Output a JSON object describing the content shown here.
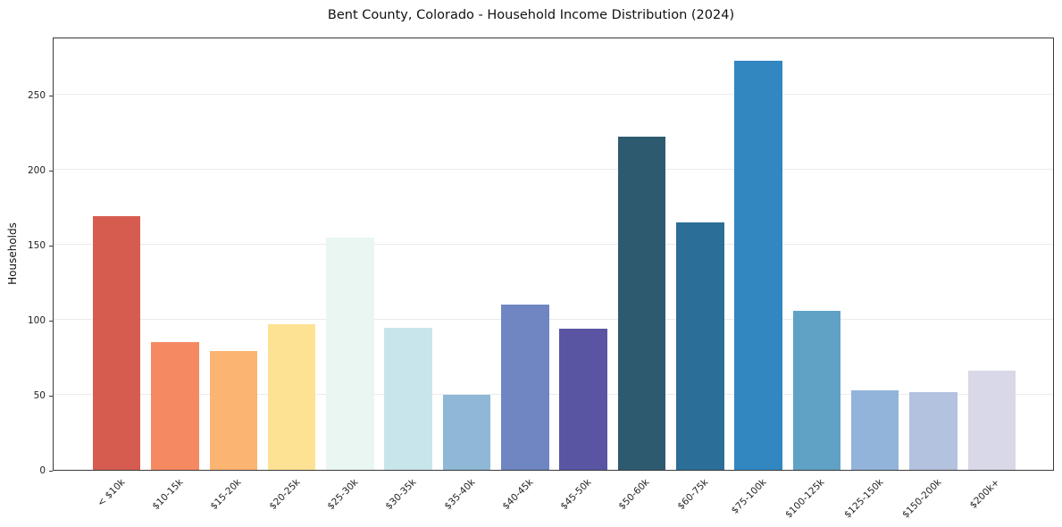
{
  "chart_data": {
    "type": "bar",
    "title": "Bent County, Colorado - Household Income Distribution (2024)",
    "xlabel": "",
    "ylabel": "Households",
    "categories": [
      "< $10k",
      "$10-15k",
      "$15-20k",
      "$20-25k",
      "$25-30k",
      "$30-35k",
      "$35-40k",
      "$40-45k",
      "$45-50k",
      "$50-60k",
      "$60-75k",
      "$75-100k",
      "$100-125k",
      "$125-150k",
      "$150-200k",
      "$200k+"
    ],
    "values": [
      169,
      85,
      79,
      97,
      155,
      95,
      50,
      110,
      94,
      222,
      165,
      273,
      106,
      53,
      52,
      66
    ],
    "bar_colors": [
      "#d65c50",
      "#f58a62",
      "#fbb471",
      "#fde294",
      "#e9f6f2",
      "#c9e5ec",
      "#8fb8d6",
      "#6f86c3",
      "#5955a3",
      "#2e5a70",
      "#2b6e97",
      "#3287c1",
      "#5fa2c6",
      "#92b4da",
      "#b3c2de",
      "#d8d8e8"
    ],
    "yticks": [
      0,
      50,
      100,
      150,
      200,
      250
    ],
    "ylim": [
      0,
      289
    ],
    "grid": true,
    "legend": false,
    "background": "#ffffff"
  }
}
